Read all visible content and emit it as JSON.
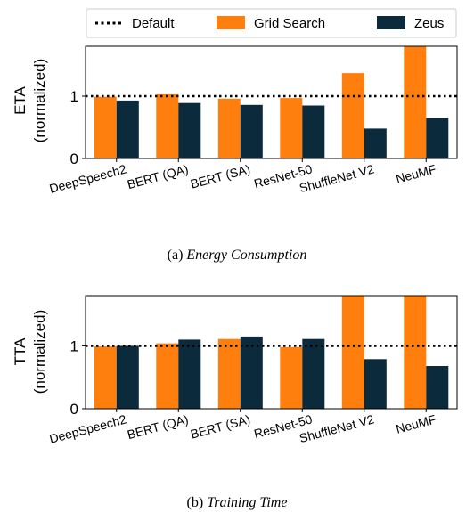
{
  "legend": {
    "default_label": "Default",
    "grid_label": "Grid Search",
    "zeus_label": "Zeus"
  },
  "colors": {
    "grid": "#ff7f0e",
    "zeus": "#0b2a3c",
    "default_line": "#000000"
  },
  "chart_data": [
    {
      "type": "bar",
      "ylabel_line1": "ETA",
      "ylabel_line2": "(normalized)",
      "ylim": [
        0,
        1.8
      ],
      "yticks": [
        0,
        1
      ],
      "reference_line": 1,
      "categories": [
        "DeepSpeech2",
        "BERT (QA)",
        "BERT (SA)",
        "ResNet-50",
        "ShuffleNet V2",
        "NeuMF"
      ],
      "series": [
        {
          "name": "Grid Search",
          "values": [
            0.99,
            1.03,
            0.96,
            0.97,
            1.37,
            1.8
          ]
        },
        {
          "name": "Zeus",
          "values": [
            0.93,
            0.89,
            0.86,
            0.85,
            0.48,
            0.65
          ]
        }
      ],
      "caption_prefix": "(a) ",
      "caption_title": "Energy Consumption"
    },
    {
      "type": "bar",
      "ylabel_line1": "TTA",
      "ylabel_line2": "(normalized)",
      "ylim": [
        0,
        1.8
      ],
      "yticks": [
        0,
        1
      ],
      "reference_line": 1,
      "categories": [
        "DeepSpeech2",
        "BERT (QA)",
        "BERT (SA)",
        "ResNet-50",
        "ShuffleNet V2",
        "NeuMF"
      ],
      "series": [
        {
          "name": "Grid Search",
          "values": [
            0.99,
            1.04,
            1.11,
            0.98,
            1.8,
            1.8
          ]
        },
        {
          "name": "Zeus",
          "values": [
            1.0,
            1.1,
            1.15,
            1.11,
            0.79,
            0.68
          ]
        }
      ],
      "caption_prefix": "(b) ",
      "caption_title": "Training Time"
    }
  ]
}
